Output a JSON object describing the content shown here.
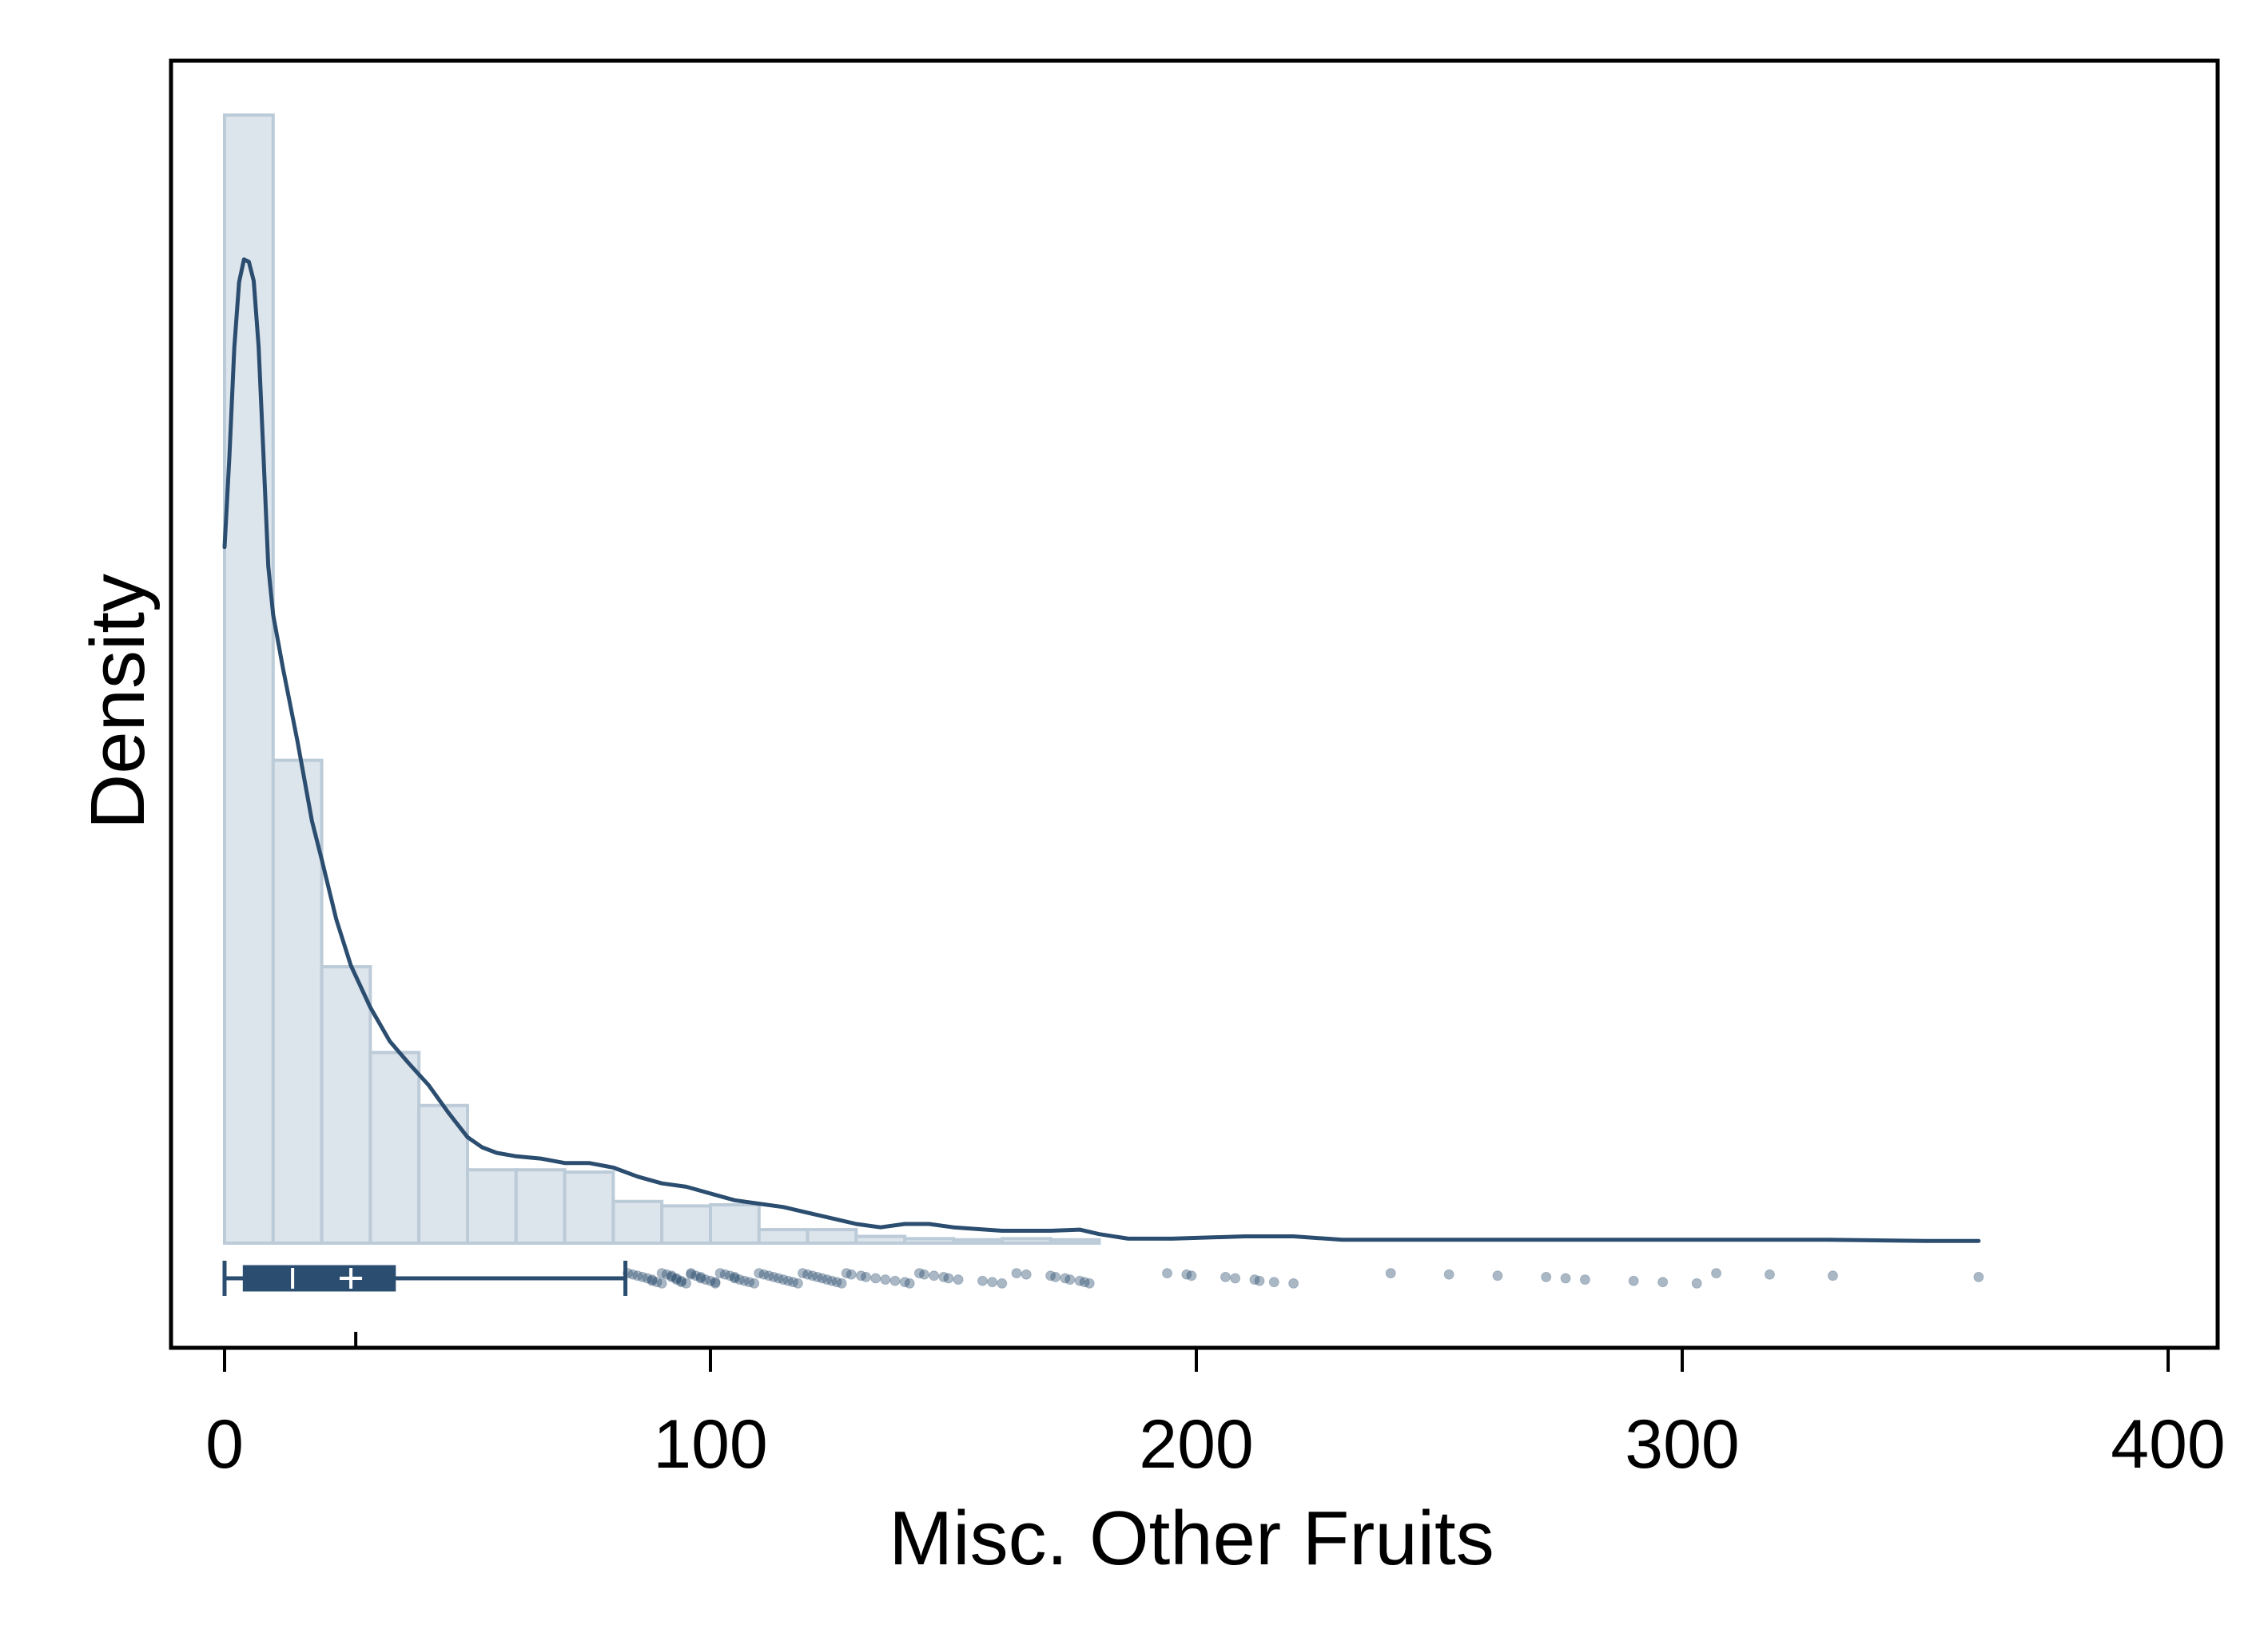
{
  "chart_data": {
    "type": "histogram",
    "xlabel": "Misc. Other Fruits",
    "ylabel": "Density",
    "xlim": [
      -11,
      411
    ],
    "x_ticks": [
      0,
      100,
      200,
      300,
      400
    ],
    "x_tick_labels": [
      "0",
      "100",
      "200",
      "300",
      "400"
    ],
    "y_ticks_shown": false,
    "grid": false,
    "colors": {
      "histogram_fill": "#dce4ec",
      "histogram_edge": "#bccbd8",
      "density_line": "#2b4d6f",
      "boxplot": "#2b4d6f",
      "outlier": "#2b4d6f",
      "frame": "#000000"
    },
    "histogram": {
      "bin_width": 10,
      "bin_edges": [
        0,
        10,
        20,
        30,
        40,
        50,
        60,
        70,
        80,
        90,
        100,
        110,
        120,
        130,
        140,
        150,
        160,
        170,
        180
      ],
      "relative_heights": [
        1.0,
        0.428,
        0.245,
        0.169,
        0.122,
        0.065,
        0.065,
        0.063,
        0.037,
        0.033,
        0.034,
        0.012,
        0.012,
        0.006,
        0.004,
        0.003,
        0.004,
        0.003
      ]
    },
    "density_curve": {
      "x": [
        0,
        1,
        2,
        3,
        4,
        5,
        6,
        7,
        8,
        9,
        10,
        12,
        15,
        18,
        20,
        23,
        26,
        30,
        34,
        38,
        42,
        46,
        50,
        53,
        56,
        60,
        65,
        70,
        75,
        80,
        85,
        90,
        95,
        100,
        105,
        110,
        115,
        120,
        125,
        130,
        135,
        140,
        145,
        150,
        160,
        170,
        176,
        180,
        186,
        195,
        210,
        220,
        230,
        250,
        270,
        290,
        310,
        330,
        350,
        361
      ],
      "relative_y": [
        0.617,
        0.698,
        0.794,
        0.852,
        0.872,
        0.87,
        0.853,
        0.795,
        0.7,
        0.6,
        0.557,
        0.51,
        0.445,
        0.374,
        0.34,
        0.287,
        0.246,
        0.209,
        0.179,
        0.159,
        0.14,
        0.116,
        0.094,
        0.085,
        0.08,
        0.077,
        0.075,
        0.071,
        0.071,
        0.067,
        0.059,
        0.053,
        0.05,
        0.044,
        0.038,
        0.035,
        0.032,
        0.027,
        0.022,
        0.017,
        0.014,
        0.017,
        0.017,
        0.014,
        0.011,
        0.011,
        0.012,
        0.008,
        0.004,
        0.004,
        0.006,
        0.006,
        0.003,
        0.003,
        0.003,
        0.003,
        0.003,
        0.003,
        0.002,
        0.002
      ]
    },
    "boxplot": {
      "whisker_low": 0,
      "q1": 4,
      "median": 14,
      "mean": 26,
      "q3": 35,
      "whisker_high": 82.5
    },
    "rug_tick": 27,
    "outliers": [
      83,
      84,
      85,
      86,
      87,
      88,
      88,
      89,
      90,
      90,
      91,
      92,
      92,
      93,
      93,
      94,
      94,
      95,
      96,
      96,
      97,
      98,
      98,
      99,
      100,
      101,
      101,
      102,
      103,
      104,
      105,
      105,
      106,
      107,
      108,
      109,
      110,
      111,
      112,
      113,
      114,
      115,
      116,
      117,
      118,
      119,
      120,
      121,
      122,
      123,
      124,
      125,
      126,
      127,
      128,
      129,
      131,
      132,
      134,
      136,
      138,
      140,
      141,
      143,
      144,
      146,
      148,
      149,
      151,
      156,
      158,
      160,
      163,
      165,
      170,
      171,
      173,
      174,
      176,
      177,
      178,
      194,
      198,
      199,
      206,
      208,
      212,
      213,
      216,
      220,
      240,
      252,
      262,
      272,
      276,
      280,
      290,
      296,
      303,
      307,
      318,
      331,
      361
    ]
  }
}
